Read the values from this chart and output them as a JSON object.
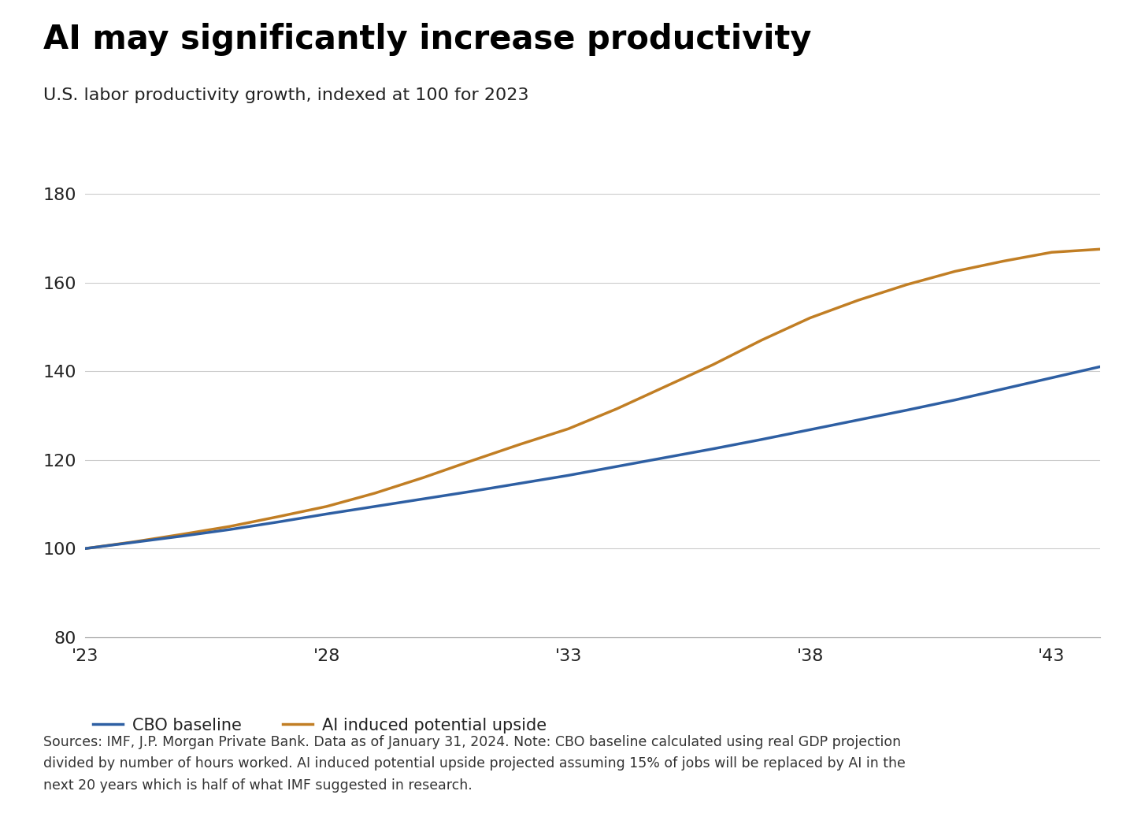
{
  "title": "AI may significantly increase productivity",
  "subtitle": "U.S. labor productivity growth, indexed at 100 for 2023",
  "footnote": "Sources: IMF, J.P. Morgan Private Bank. Data as of January 31, 2024. Note: CBO baseline calculated using real GDP projection\ndivided by number of hours worked. AI induced potential upside projected assuming 15% of jobs will be replaced by AI in the\nnext 20 years which is half of what IMF suggested in research.",
  "x_ticks": [
    2023,
    2028,
    2033,
    2038,
    2043
  ],
  "x_tick_labels": [
    "'23",
    "'28",
    "'33",
    "'38",
    "'43"
  ],
  "xlim": [
    2023,
    2044
  ],
  "ylim": [
    80,
    185
  ],
  "y_ticks": [
    80,
    100,
    120,
    140,
    160,
    180
  ],
  "cbo_baseline": {
    "label": "CBO baseline",
    "color": "#2E5FA3",
    "x": [
      2023,
      2024,
      2025,
      2026,
      2027,
      2028,
      2029,
      2030,
      2031,
      2032,
      2033,
      2034,
      2035,
      2036,
      2037,
      2038,
      2039,
      2040,
      2041,
      2042,
      2043,
      2044
    ],
    "y": [
      100,
      101.4,
      102.8,
      104.3,
      106.0,
      107.8,
      109.5,
      111.2,
      112.9,
      114.7,
      116.5,
      118.5,
      120.5,
      122.5,
      124.6,
      126.8,
      129.0,
      131.2,
      133.5,
      136.0,
      138.5,
      141.0
    ]
  },
  "ai_upside": {
    "label": "AI induced potential upside",
    "color": "#C17E24",
    "x": [
      2023,
      2024,
      2025,
      2026,
      2027,
      2028,
      2029,
      2030,
      2031,
      2032,
      2033,
      2034,
      2035,
      2036,
      2037,
      2038,
      2039,
      2040,
      2041,
      2042,
      2043,
      2044
    ],
    "y": [
      100,
      101.5,
      103.2,
      105.0,
      107.2,
      109.5,
      112.5,
      116.0,
      119.8,
      123.5,
      127.0,
      131.5,
      136.5,
      141.5,
      147.0,
      152.0,
      156.0,
      159.5,
      162.5,
      164.8,
      166.8,
      167.5
    ]
  },
  "background_color": "#FFFFFF",
  "grid_color": "#CCCCCC",
  "line_width": 2.5,
  "title_fontsize": 30,
  "subtitle_fontsize": 16,
  "footnote_fontsize": 12.5,
  "tick_fontsize": 16,
  "legend_fontsize": 15
}
